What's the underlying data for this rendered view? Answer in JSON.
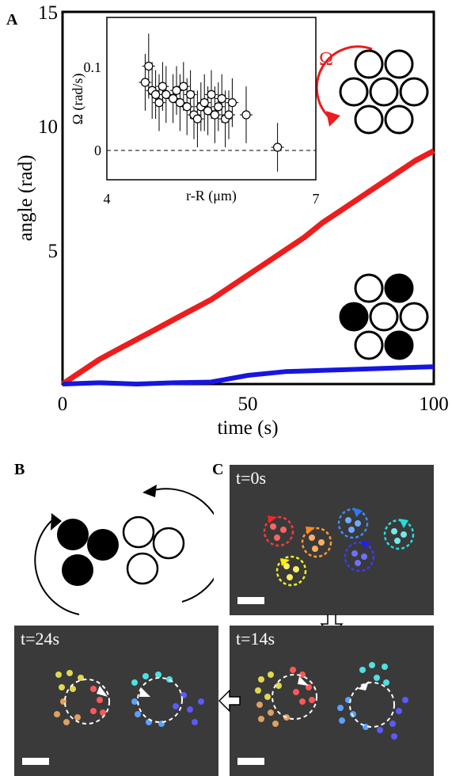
{
  "panelA": {
    "letter": "A",
    "ylabel": "angle (rad)",
    "xlabel": "time (s)",
    "xticks": [
      "0",
      "50",
      "100"
    ],
    "yticks": [
      "5",
      "10",
      "15"
    ],
    "omega_label": "Ω",
    "colors": {
      "cw_series": "#ee1c1c",
      "mixed_series": "#1616e0"
    }
  },
  "inset": {
    "ylabel": "Ω (rad/s)",
    "xlabel": "r-R (μm)",
    "xticks": [
      "4",
      "7"
    ],
    "yticks": [
      "0",
      "0.1"
    ]
  },
  "panelB": {
    "letter": "B"
  },
  "panelC": {
    "letter": "C",
    "frames": [
      {
        "time": "t=0s"
      },
      {
        "time": "t=14s"
      },
      {
        "time": "t=24s"
      }
    ]
  },
  "chart_data": [
    {
      "type": "line",
      "title": "",
      "xlabel": "time (s)",
      "ylabel": "angle (rad)",
      "xlim": [
        0,
        100
      ],
      "ylim": [
        0,
        15
      ],
      "series": [
        {
          "x": [
            0,
            5,
            10,
            15,
            20,
            25,
            30,
            35,
            40,
            45,
            50,
            55,
            60,
            65,
            70,
            75,
            80,
            85,
            90,
            95,
            100
          ],
          "values": [
            0,
            0.5,
            1.0,
            1.4,
            1.8,
            2.2,
            2.6,
            3.0,
            3.4,
            3.9,
            4.4,
            4.9,
            5.4,
            5.9,
            6.5,
            7.0,
            7.5,
            8.0,
            8.5,
            9.0,
            9.4
          ]
        },
        {
          "x": [
            0,
            10,
            20,
            30,
            40,
            50,
            60,
            70,
            80,
            90,
            100
          ],
          "values": [
            0.0,
            0.05,
            0.0,
            0.05,
            0.08,
            0.35,
            0.5,
            0.55,
            0.6,
            0.65,
            0.7
          ]
        }
      ]
    },
    {
      "type": "scatter",
      "title": "",
      "xlabel": "r-R (μm)",
      "ylabel": "Ω (rad/s)",
      "xlim": [
        4,
        7
      ],
      "ylim": [
        -0.04,
        0.16
      ],
      "series": [
        {
          "x": [
            4.55,
            4.6,
            4.65,
            4.7,
            4.75,
            4.8,
            4.85,
            4.95,
            5.0,
            5.05,
            5.1,
            5.15,
            5.2,
            5.25,
            5.3,
            5.35,
            5.4,
            5.45,
            5.5,
            5.55,
            5.6,
            5.65,
            5.7,
            5.75,
            5.8,
            6.0,
            6.45
          ],
          "values": [
            0.08,
            0.1,
            0.07,
            0.065,
            0.055,
            0.075,
            0.065,
            0.06,
            0.07,
            0.055,
            0.075,
            0.05,
            0.065,
            0.04,
            0.035,
            0.05,
            0.055,
            0.045,
            0.065,
            0.04,
            0.05,
            0.06,
            0.035,
            0.04,
            0.055,
            0.04,
            0.0
          ],
          "errors": [
            0.035,
            0.04,
            0.035,
            0.03,
            0.035,
            0.03,
            0.035,
            0.03,
            0.03,
            0.035,
            0.03,
            0.035,
            0.03,
            0.03,
            0.035,
            0.03,
            0.035,
            0.03,
            0.03,
            0.035,
            0.03,
            0.03,
            0.035,
            0.03,
            0.03,
            0.035,
            0.03
          ]
        }
      ]
    }
  ]
}
